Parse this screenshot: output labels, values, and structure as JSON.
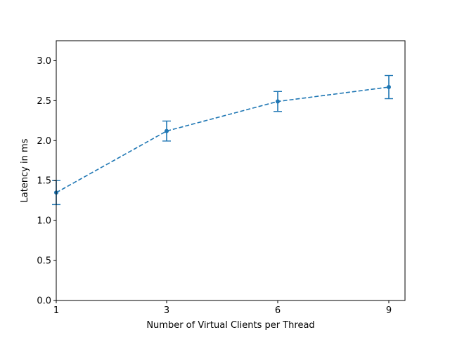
{
  "chart_data": {
    "type": "line",
    "title": "",
    "xlabel": "Number of Virtual Clients per Thread",
    "ylabel": "Latency in ms",
    "x_categories": [
      "1",
      "3",
      "6",
      "9"
    ],
    "series": [
      {
        "values": [
          1.35,
          2.12,
          2.49,
          2.67
        ],
        "error": [
          0.15,
          0.125,
          0.125,
          0.145
        ],
        "color": "#1f77b4",
        "line_style": "dashed",
        "marker": "circle"
      }
    ],
    "ylim": [
      0.0,
      3.25
    ],
    "y_ticks": [
      "0.0",
      "0.5",
      "1.0",
      "1.5",
      "2.0",
      "2.5",
      "3.0"
    ],
    "grid": false,
    "legend": "none"
  }
}
